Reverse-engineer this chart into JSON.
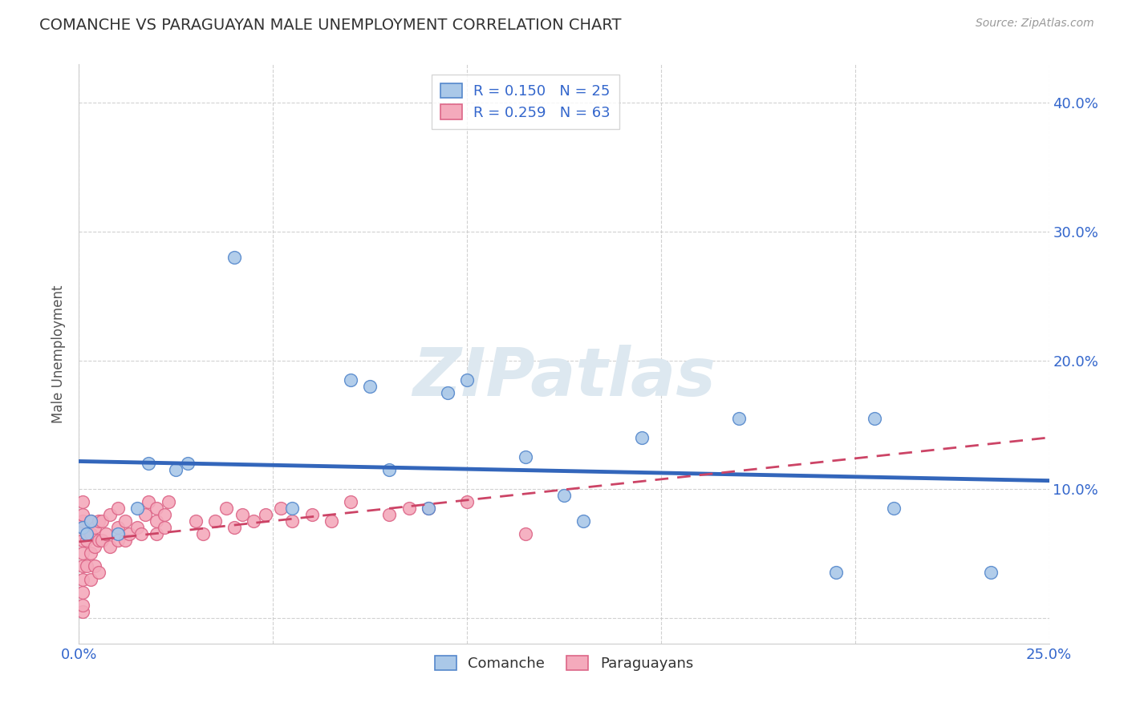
{
  "title": "COMANCHE VS PARAGUAYAN MALE UNEMPLOYMENT CORRELATION CHART",
  "source": "Source: ZipAtlas.com",
  "ylabel": "Male Unemployment",
  "xlim": [
    0.0,
    0.25
  ],
  "ylim": [
    -0.02,
    0.43
  ],
  "xticks": [
    0.0,
    0.05,
    0.1,
    0.15,
    0.2,
    0.25
  ],
  "yticks": [
    0.0,
    0.1,
    0.2,
    0.3,
    0.4
  ],
  "ytick_labels_right": [
    "",
    "10.0%",
    "20.0%",
    "30.0%",
    "40.0%"
  ],
  "xtick_labels": [
    "0.0%",
    "",
    "",
    "",
    "",
    "25.0%"
  ],
  "comanche_R": 0.15,
  "comanche_N": 25,
  "paraguayan_R": 0.259,
  "paraguayan_N": 63,
  "comanche_color": "#aac8e8",
  "paraguayan_color": "#f4aabc",
  "comanche_edge_color": "#5588cc",
  "paraguayan_edge_color": "#dd6688",
  "comanche_line_color": "#3366bb",
  "paraguayan_line_color": "#cc4466",
  "legend_R_color": "#3366cc",
  "background_color": "#ffffff",
  "grid_color": "#cccccc",
  "watermark_color": "#dde8f0",
  "comanche_x": [
    0.001,
    0.002,
    0.003,
    0.01,
    0.015,
    0.018,
    0.025,
    0.028,
    0.04,
    0.055,
    0.07,
    0.075,
    0.08,
    0.09,
    0.095,
    0.1,
    0.115,
    0.125,
    0.13,
    0.145,
    0.17,
    0.195,
    0.205,
    0.21,
    0.235
  ],
  "comanche_y": [
    0.07,
    0.065,
    0.075,
    0.065,
    0.085,
    0.12,
    0.115,
    0.12,
    0.28,
    0.085,
    0.185,
    0.18,
    0.115,
    0.085,
    0.175,
    0.185,
    0.125,
    0.095,
    0.075,
    0.14,
    0.155,
    0.035,
    0.155,
    0.085,
    0.035
  ],
  "paraguayan_x": [
    0.001,
    0.001,
    0.001,
    0.001,
    0.001,
    0.001,
    0.001,
    0.001,
    0.001,
    0.001,
    0.001,
    0.002,
    0.002,
    0.002,
    0.003,
    0.003,
    0.003,
    0.003,
    0.004,
    0.004,
    0.004,
    0.005,
    0.005,
    0.005,
    0.006,
    0.006,
    0.007,
    0.008,
    0.008,
    0.01,
    0.01,
    0.01,
    0.012,
    0.012,
    0.013,
    0.015,
    0.016,
    0.017,
    0.018,
    0.02,
    0.02,
    0.02,
    0.022,
    0.022,
    0.023,
    0.03,
    0.032,
    0.035,
    0.038,
    0.04,
    0.042,
    0.045,
    0.048,
    0.052,
    0.055,
    0.06,
    0.065,
    0.07,
    0.08,
    0.085,
    0.09,
    0.1,
    0.115
  ],
  "paraguayan_y": [
    0.005,
    0.01,
    0.02,
    0.03,
    0.04,
    0.05,
    0.06,
    0.07,
    0.075,
    0.08,
    0.09,
    0.04,
    0.06,
    0.065,
    0.03,
    0.05,
    0.065,
    0.075,
    0.04,
    0.055,
    0.07,
    0.035,
    0.06,
    0.075,
    0.06,
    0.075,
    0.065,
    0.055,
    0.08,
    0.06,
    0.07,
    0.085,
    0.06,
    0.075,
    0.065,
    0.07,
    0.065,
    0.08,
    0.09,
    0.065,
    0.075,
    0.085,
    0.07,
    0.08,
    0.09,
    0.075,
    0.065,
    0.075,
    0.085,
    0.07,
    0.08,
    0.075,
    0.08,
    0.085,
    0.075,
    0.08,
    0.075,
    0.09,
    0.08,
    0.085,
    0.085,
    0.09,
    0.065
  ]
}
